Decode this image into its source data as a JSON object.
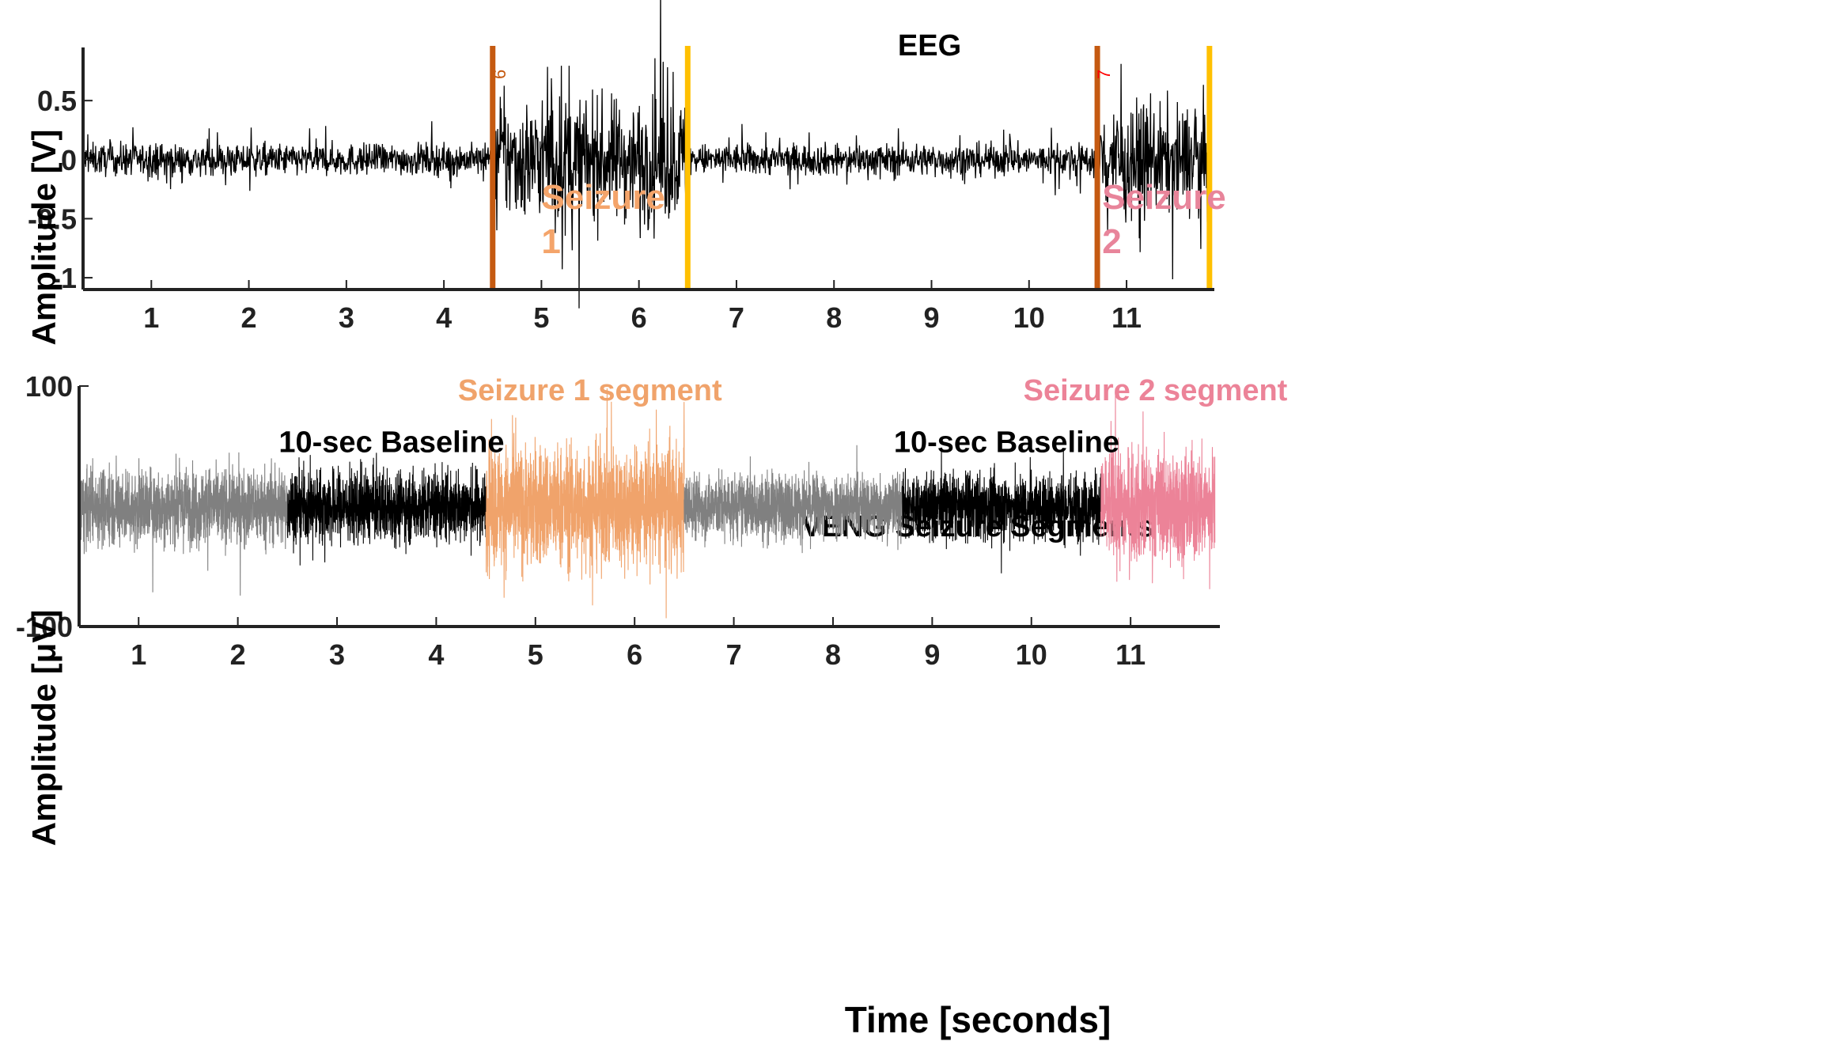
{
  "chart_data": [
    {
      "type": "line",
      "title": "EEG",
      "xlabel": "",
      "ylabel": "Amplitude [V]",
      "xlim": [
        0.3,
        11.9
      ],
      "ylim": [
        -1.1,
        0.95
      ],
      "xticks": [
        1,
        2,
        3,
        4,
        5,
        6,
        7,
        8,
        9,
        10,
        11
      ],
      "xtick_labels": [
        "1",
        "2",
        "3",
        "4",
        "5",
        "6",
        "7",
        "8",
        "9",
        "10",
        "11"
      ],
      "yticks": [
        0.5,
        0,
        -0.5,
        -1
      ],
      "ytick_labels": [
        "0.5",
        "0",
        "-0.5",
        "-1"
      ],
      "grid": false,
      "series": [
        {
          "color": "#000000",
          "envelope": [
            {
              "x_start": 0.3,
              "x_end": 4.5,
              "amplitude": 0.12
            },
            {
              "x_start": 4.5,
              "x_end": 6.5,
              "amplitude": 0.45
            },
            {
              "x_start": 6.5,
              "x_end": 10.7,
              "amplitude": 0.12
            },
            {
              "x_start": 10.7,
              "x_end": 11.85,
              "amplitude": 0.4
            }
          ]
        }
      ],
      "markers": [
        {
          "label": "6",
          "x": 4.5,
          "color": "#C55A11",
          "label_color": "#C55A11"
        },
        {
          "x": 6.5,
          "color": "#FFC000"
        },
        {
          "label": "7",
          "x": 10.7,
          "color": "#C55A11",
          "label_color": "#FF0000"
        },
        {
          "x": 11.85,
          "color": "#FFC000"
        }
      ],
      "annotations": [
        {
          "lines": [
            "Seizure",
            "1"
          ],
          "color": "#F4A46A",
          "x": 5.0,
          "y": -0.55
        },
        {
          "lines": [
            "Seizure",
            "2"
          ],
          "color": "#E8849A",
          "x": 10.75,
          "y": -0.55
        }
      ]
    },
    {
      "type": "line",
      "title": "VENG Seizure Segments",
      "xlabel": "Time [seconds]",
      "ylabel": "Amplitude [μV]",
      "xlim": [
        0.4,
        11.9
      ],
      "ylim": [
        -100,
        100
      ],
      "xticks": [
        1,
        2,
        3,
        4,
        5,
        6,
        7,
        8,
        9,
        10,
        11
      ],
      "xtick_labels": [
        "1",
        "2",
        "3",
        "4",
        "5",
        "6",
        "7",
        "8",
        "9",
        "10",
        "11"
      ],
      "yticks": [
        100,
        -100
      ],
      "ytick_labels": [
        "100",
        "-100"
      ],
      "grid": false,
      "series": [
        {
          "segment": "background",
          "x_start": 0.4,
          "x_end": 2.5,
          "color": "#808080",
          "amplitude": 35
        },
        {
          "segment": "baseline 1",
          "x_start": 2.5,
          "x_end": 4.5,
          "color": "#000000",
          "amplitude": 33
        },
        {
          "segment": "seizure 1",
          "x_start": 4.5,
          "x_end": 6.5,
          "color": "#F0A36B",
          "amplitude": 55
        },
        {
          "segment": "background",
          "x_start": 6.5,
          "x_end": 8.7,
          "color": "#808080",
          "amplitude": 30
        },
        {
          "segment": "baseline 2",
          "x_start": 8.7,
          "x_end": 10.7,
          "color": "#000000",
          "amplitude": 30
        },
        {
          "segment": "seizure 2",
          "x_start": 10.7,
          "x_end": 11.85,
          "color": "#EC8398",
          "amplitude": 50
        }
      ],
      "annotations": [
        {
          "text": "10-sec Baseline",
          "color": "#000000",
          "x": 3.55,
          "y": 45
        },
        {
          "text": "Seizure 1 segment",
          "color": "#F0A36B",
          "x": 5.55,
          "y": 88
        },
        {
          "text": "10-sec Baseline",
          "color": "#000000",
          "x": 9.75,
          "y": 45
        },
        {
          "text": "Seizure 2 segment",
          "color": "#EC8398",
          "x": 11.25,
          "y": 88
        }
      ]
    }
  ]
}
